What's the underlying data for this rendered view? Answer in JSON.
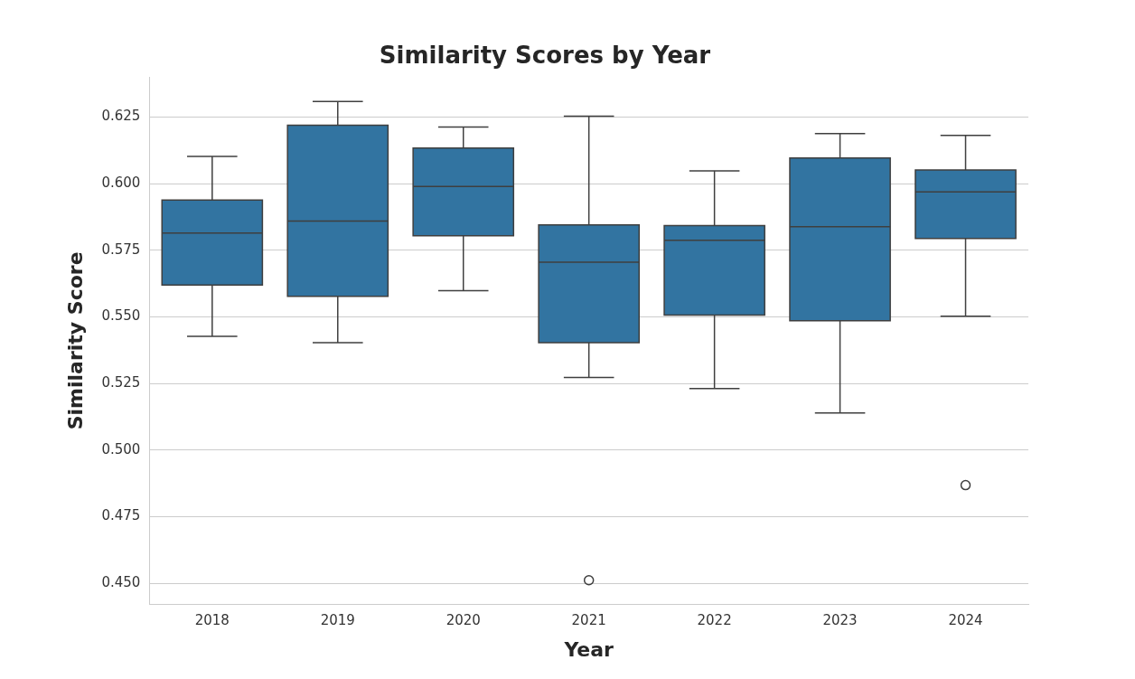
{
  "chart_data": {
    "type": "box",
    "title": "Similarity Scores by Year",
    "xlabel": "Year",
    "ylabel": "Similarity Score",
    "categories": [
      "2018",
      "2019",
      "2020",
      "2021",
      "2022",
      "2023",
      "2024"
    ],
    "color": "#3274a1",
    "boxes": [
      {
        "low": 0.5427,
        "q1": 0.5619,
        "median": 0.5814,
        "q3": 0.5938,
        "high": 0.6102
      },
      {
        "low": 0.5403,
        "q1": 0.5577,
        "median": 0.5859,
        "q3": 0.6219,
        "high": 0.6308
      },
      {
        "low": 0.5598,
        "q1": 0.5804,
        "median": 0.5989,
        "q3": 0.6133,
        "high": 0.6212
      },
      {
        "low": 0.5272,
        "q1": 0.5403,
        "median": 0.5705,
        "q3": 0.5845,
        "high": 0.6253,
        "outliers": [
          0.4511
        ]
      },
      {
        "low": 0.5231,
        "q1": 0.5506,
        "median": 0.5787,
        "q3": 0.5842,
        "high": 0.6048
      },
      {
        "low": 0.5139,
        "q1": 0.5485,
        "median": 0.5838,
        "q3": 0.6096,
        "high": 0.6188
      },
      {
        "low": 0.5502,
        "q1": 0.5794,
        "median": 0.5969,
        "q3": 0.6051,
        "high": 0.6181,
        "outliers": [
          0.4868
        ]
      }
    ],
    "ylim": [
      0.442,
      0.64
    ],
    "yticks": [
      {
        "value": 0.45,
        "label": "0.450"
      },
      0.475,
      {
        "value": 0.5,
        "label": "0.500"
      },
      0.525,
      {
        "value": 0.55,
        "label": "0.550"
      },
      0.575,
      {
        "value": 0.6,
        "label": "0.600"
      },
      0.625
    ],
    "grid": "y"
  }
}
